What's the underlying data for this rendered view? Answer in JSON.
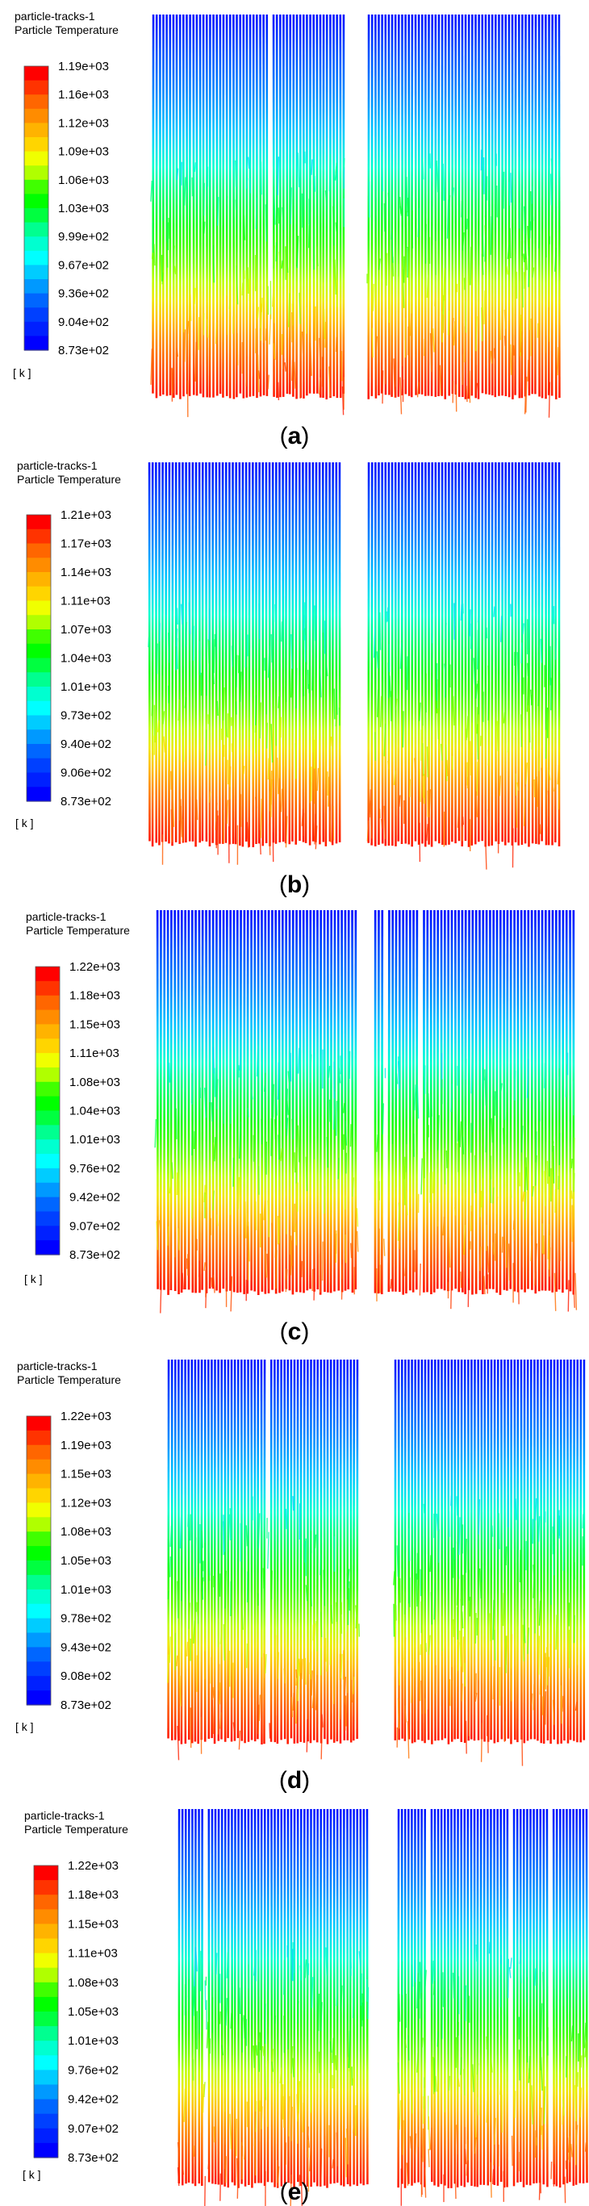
{
  "figure": {
    "panels": [
      {
        "label": "(a)",
        "label_letter": "a",
        "title_line1": "particle-tracks-1",
        "title_line2": "Particle Temperature",
        "unit": "[ k ]",
        "ticks": [
          "1.19e+03",
          "1.16e+03",
          "1.12e+03",
          "1.09e+03",
          "1.06e+03",
          "1.03e+03",
          "9.99e+02",
          "9.67e+02",
          "9.36e+02",
          "9.04e+02",
          "8.73e+02"
        ]
      },
      {
        "label": "(b)",
        "label_letter": "b",
        "title_line1": "particle-tracks-1",
        "title_line2": "Particle Temperature",
        "unit": "[ k ]",
        "ticks": [
          "1.21e+03",
          "1.17e+03",
          "1.14e+03",
          "1.11e+03",
          "1.07e+03",
          "1.04e+03",
          "1.01e+03",
          "9.73e+02",
          "9.40e+02",
          "9.06e+02",
          "8.73e+02"
        ]
      },
      {
        "label": "(c)",
        "label_letter": "c",
        "title_line1": "particle-tracks-1",
        "title_line2": "Particle Temperature",
        "unit": "[ k ]",
        "ticks": [
          "1.22e+03",
          "1.18e+03",
          "1.15e+03",
          "1.11e+03",
          "1.08e+03",
          "1.04e+03",
          "1.01e+03",
          "9.76e+02",
          "9.42e+02",
          "9.07e+02",
          "8.73e+02"
        ]
      },
      {
        "label": "(d)",
        "label_letter": "d",
        "title_line1": "particle-tracks-1",
        "title_line2": "Particle Temperature",
        "unit": "[ k ]",
        "ticks": [
          "1.22e+03",
          "1.19e+03",
          "1.15e+03",
          "1.12e+03",
          "1.08e+03",
          "1.05e+03",
          "1.01e+03",
          "9.78e+02",
          "9.43e+02",
          "9.08e+02",
          "8.73e+02"
        ]
      },
      {
        "label": "(e)",
        "label_letter": "e",
        "title_line1": "particle-tracks-1",
        "title_line2": "Particle Temperature",
        "unit": "[ k ]",
        "ticks": [
          "1.22e+03",
          "1.18e+03",
          "1.15e+03",
          "1.11e+03",
          "1.08e+03",
          "1.05e+03",
          "1.01e+03",
          "9.76e+02",
          "9.42e+02",
          "9.07e+02",
          "8.73e+02"
        ]
      }
    ]
  },
  "chart_data": [
    {
      "type": "heatmap",
      "title": "particle-tracks-1 Particle Temperature",
      "panel": "a",
      "unit": "k",
      "colorbar_range": [
        873,
        1190
      ],
      "colorbar_ticks": [
        1190,
        1160,
        1120,
        1090,
        1060,
        1030,
        999,
        967,
        936,
        904,
        873
      ],
      "colormap": "blue-cyan-green-yellow-red"
    },
    {
      "type": "heatmap",
      "title": "particle-tracks-1 Particle Temperature",
      "panel": "b",
      "unit": "k",
      "colorbar_range": [
        873,
        1210
      ],
      "colorbar_ticks": [
        1210,
        1170,
        1140,
        1110,
        1070,
        1040,
        1010,
        973,
        940,
        906,
        873
      ],
      "colormap": "blue-cyan-green-yellow-red"
    },
    {
      "type": "heatmap",
      "title": "particle-tracks-1 Particle Temperature",
      "panel": "c",
      "unit": "k",
      "colorbar_range": [
        873,
        1220
      ],
      "colorbar_ticks": [
        1220,
        1180,
        1150,
        1110,
        1080,
        1040,
        1010,
        976,
        942,
        907,
        873
      ],
      "colormap": "blue-cyan-green-yellow-red"
    },
    {
      "type": "heatmap",
      "title": "particle-tracks-1 Particle Temperature",
      "panel": "d",
      "unit": "k",
      "colorbar_range": [
        873,
        1220
      ],
      "colorbar_ticks": [
        1220,
        1190,
        1150,
        1120,
        1080,
        1050,
        1010,
        978,
        943,
        908,
        873
      ],
      "colormap": "blue-cyan-green-yellow-red"
    },
    {
      "type": "heatmap",
      "title": "particle-tracks-1 Particle Temperature",
      "panel": "e",
      "unit": "k",
      "colorbar_range": [
        873,
        1220
      ],
      "colorbar_ticks": [
        1220,
        1180,
        1150,
        1110,
        1080,
        1050,
        1010,
        976,
        942,
        907,
        873
      ],
      "colormap": "blue-cyan-green-yellow-red"
    }
  ]
}
